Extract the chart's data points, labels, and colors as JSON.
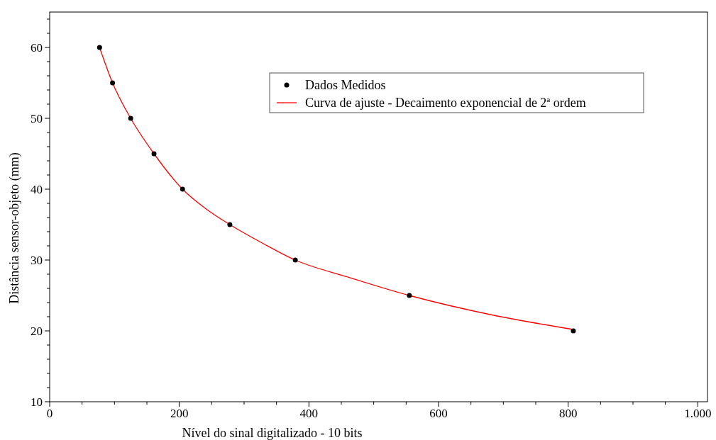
{
  "chart_data": {
    "type": "scatter",
    "xlabel": "Nível do sinal digitalizado - 10 bits",
    "ylabel": "Distância sensor-objeto (mm)",
    "xlim": [
      0,
      1015
    ],
    "ylim": [
      10,
      65
    ],
    "xticks": [
      0,
      {
        "value": 50,
        "label": null
      },
      {
        "value": 100,
        "label": null
      },
      {
        "value": 150,
        "label": null
      },
      200,
      {
        "value": 250,
        "label": null
      },
      {
        "value": 300,
        "label": null
      },
      {
        "value": 350,
        "label": null
      },
      400,
      {
        "value": 450,
        "label": null
      },
      {
        "value": 500,
        "label": null
      },
      {
        "value": 550,
        "label": null
      },
      600,
      {
        "value": 650,
        "label": null
      },
      {
        "value": 700,
        "label": null
      },
      {
        "value": 750,
        "label": null
      },
      800,
      {
        "value": 850,
        "label": null
      },
      {
        "value": 900,
        "label": null
      },
      {
        "value": 950,
        "label": null
      },
      {
        "value": 1000,
        "label": "1.000"
      }
    ],
    "yticks": [
      10,
      {
        "value": 12,
        "label": null
      },
      {
        "value": 14,
        "label": null
      },
      {
        "value": 16,
        "label": null
      },
      {
        "value": 18,
        "label": null
      },
      20,
      {
        "value": 22,
        "label": null
      },
      {
        "value": 24,
        "label": null
      },
      {
        "value": 26,
        "label": null
      },
      {
        "value": 28,
        "label": null
      },
      30,
      {
        "value": 32,
        "label": null
      },
      {
        "value": 34,
        "label": null
      },
      {
        "value": 36,
        "label": null
      },
      {
        "value": 38,
        "label": null
      },
      40,
      {
        "value": 42,
        "label": null
      },
      {
        "value": 44,
        "label": null
      },
      {
        "value": 46,
        "label": null
      },
      {
        "value": 48,
        "label": null
      },
      50,
      {
        "value": 52,
        "label": null
      },
      {
        "value": 54,
        "label": null
      },
      {
        "value": 56,
        "label": null
      },
      {
        "value": 58,
        "label": null
      },
      60,
      {
        "value": 62,
        "label": null
      },
      {
        "value": 64,
        "label": null
      }
    ],
    "legend": "top right",
    "grid": false,
    "marker": "circle",
    "series": [
      {
        "name": "Dados Medidos",
        "color": "#000000",
        "x": [
          77,
          97,
          125,
          161,
          205,
          278,
          379,
          555,
          808
        ],
        "values": [
          60,
          55,
          50,
          45,
          40,
          35,
          30,
          25,
          20
        ]
      },
      {
        "name": "Curva de ajuste - Decaimento exponencial de 2ª ordem",
        "type": "line",
        "color": "#ff0000",
        "marker": "none",
        "x": [
          77,
          97,
          125,
          161,
          205,
          240,
          278,
          330,
          379,
          460,
          555,
          680,
          808
        ],
        "values": [
          60,
          55,
          50,
          45,
          40,
          37.3,
          35,
          32.3,
          30,
          27.6,
          25,
          22.3,
          20.2
        ]
      }
    ]
  }
}
